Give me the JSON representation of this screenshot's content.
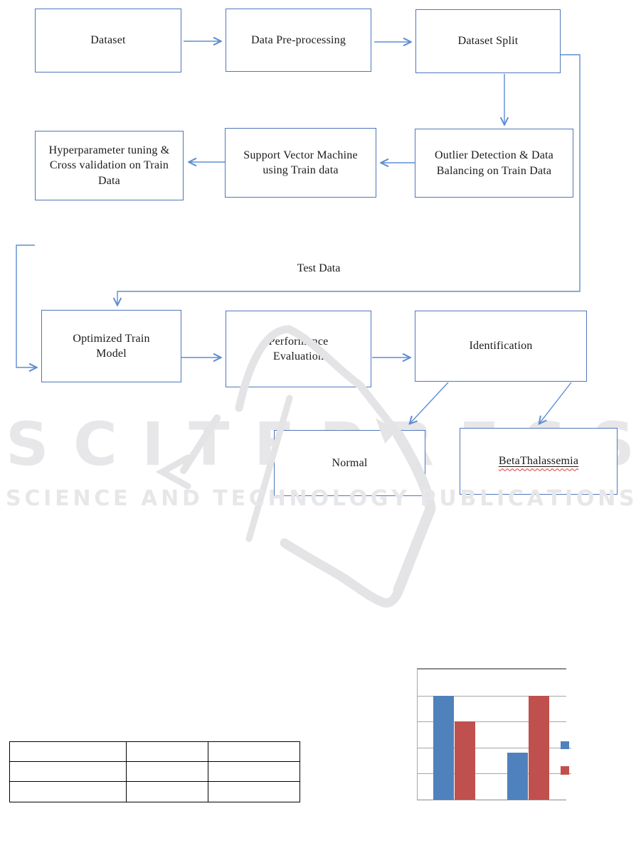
{
  "flowchart": {
    "boxes": [
      {
        "id": "dataset",
        "label": "Dataset"
      },
      {
        "id": "preprocessing",
        "label": "Data Pre-processing"
      },
      {
        "id": "dataset-split",
        "label": "Dataset Split"
      },
      {
        "id": "hyperparameter",
        "label": "Hyperparameter tuning & Cross validation on Train Data"
      },
      {
        "id": "svm",
        "label": "Support Vector Machine using Train data"
      },
      {
        "id": "outlier",
        "label": "Outlier Detection & Data Balancing on Train Data"
      },
      {
        "id": "optimized",
        "label": "Optimized Train Model"
      },
      {
        "id": "performance",
        "label": "Performance Evaluation"
      },
      {
        "id": "identification",
        "label": "Identification"
      },
      {
        "id": "normal",
        "label": "Normal"
      },
      {
        "id": "beta",
        "label": "BetaThalassemia"
      }
    ],
    "edge_label": "Test Data"
  },
  "watermark": {
    "word": "SCITEPRESS",
    "subtitle": "SCIENCE AND TECHNOLOGY PUBLICATIONS",
    "color": "#e7e7e9",
    "swoosh_color": "#e4e4e6"
  },
  "colors": {
    "box_border": "#4f76ba",
    "connector": "#5f8dd3",
    "spellcheck_wavy": "#e0312e",
    "table_border": "#000000",
    "chart_axis": "#8a8a8a",
    "chart_gridline": "#a6a6a6"
  },
  "table": {
    "rows": 3,
    "cols": 3,
    "cells": [
      [
        "",
        "",
        ""
      ],
      [
        "",
        "",
        ""
      ],
      [
        "",
        "",
        ""
      ]
    ]
  },
  "chart_data": {
    "type": "bar",
    "categories": [
      "",
      ""
    ],
    "series": [
      {
        "name": "series-1",
        "color": "#4f81bd",
        "values": [
          80,
          36
        ]
      },
      {
        "name": "series-2",
        "color": "#c0504d",
        "values": [
          60,
          80
        ]
      }
    ],
    "title": "",
    "xlabel": "",
    "ylabel": "",
    "ylim": [
      0,
      100
    ],
    "gridline_step": 20,
    "grid": true,
    "legend_position": "right",
    "axis_tick_labels_visible": false,
    "legend_labels_visible": false
  }
}
